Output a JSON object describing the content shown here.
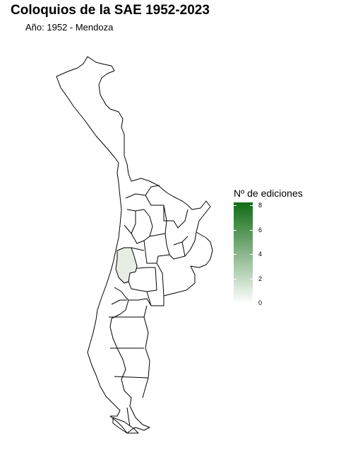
{
  "title": "Coloquios de la SAE 1952-2023",
  "subtitle": "Año: 1952 - Mendoza",
  "legend": {
    "title": "Nº de ediciones",
    "min": 0,
    "max": 8,
    "ticks": [
      "0",
      "2",
      "4",
      "6",
      "8"
    ],
    "color_low": "#ffffff",
    "color_high": "#0f6b12"
  },
  "map": {
    "highlighted_region": "Mendoza",
    "highlighted_editions": 1,
    "highlight_color": "#e6eee4",
    "outline_color": "#000000"
  }
}
